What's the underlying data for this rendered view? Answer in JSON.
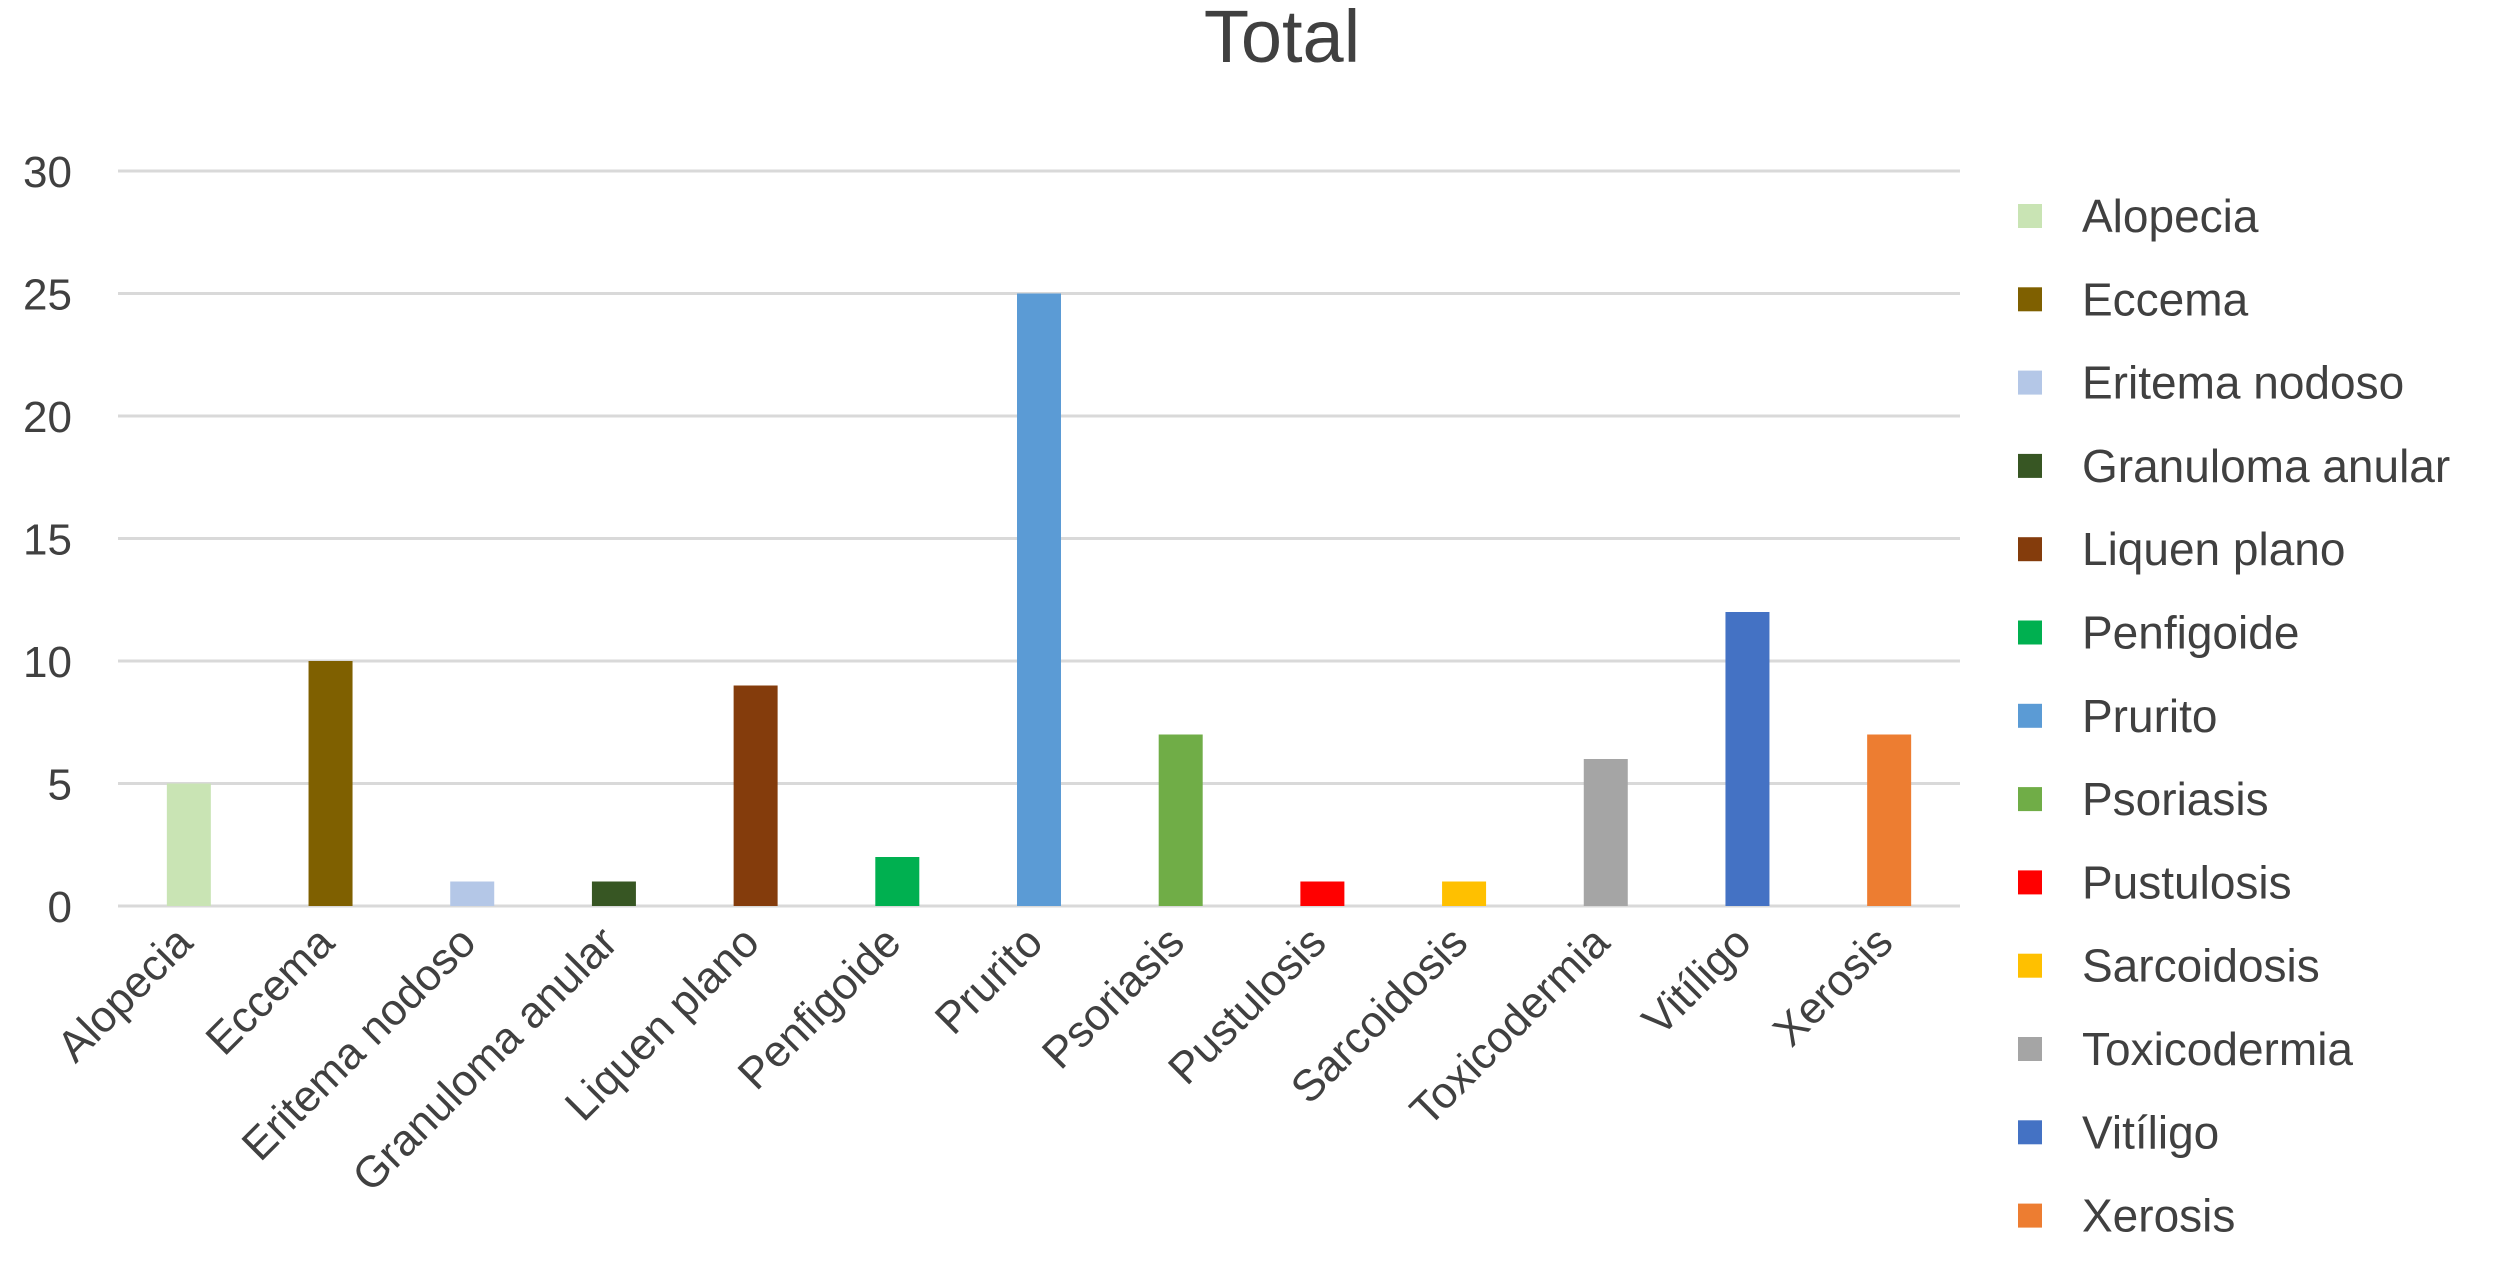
{
  "chart_data": {
    "type": "bar",
    "title": "Total",
    "xlabel": "",
    "ylabel": "",
    "ylim": [
      0,
      30
    ],
    "yticks": [
      0,
      5,
      10,
      15,
      20,
      25,
      30
    ],
    "grid": true,
    "legend_position": "right",
    "categories": [
      "Alopecia",
      "Eccema",
      "Eritema nodoso",
      "Granuloma anular",
      "Liquen plano",
      "Penfigoide",
      "Prurito",
      "Psoriasis",
      "Pustulosis",
      "Sarcoidosis",
      "Toxicodermia",
      "Vitíligo",
      "Xerosis"
    ],
    "values": [
      5,
      10,
      1,
      1,
      9,
      2,
      25,
      7,
      1,
      1,
      6,
      12,
      7
    ],
    "colors": [
      "#c9e4b4",
      "#7f6000",
      "#b4c7e7",
      "#375623",
      "#843c0c",
      "#00b050",
      "#5b9bd5",
      "#70ad47",
      "#ff0000",
      "#ffc000",
      "#a5a5a5",
      "#4472c4",
      "#ed7d31"
    ]
  }
}
